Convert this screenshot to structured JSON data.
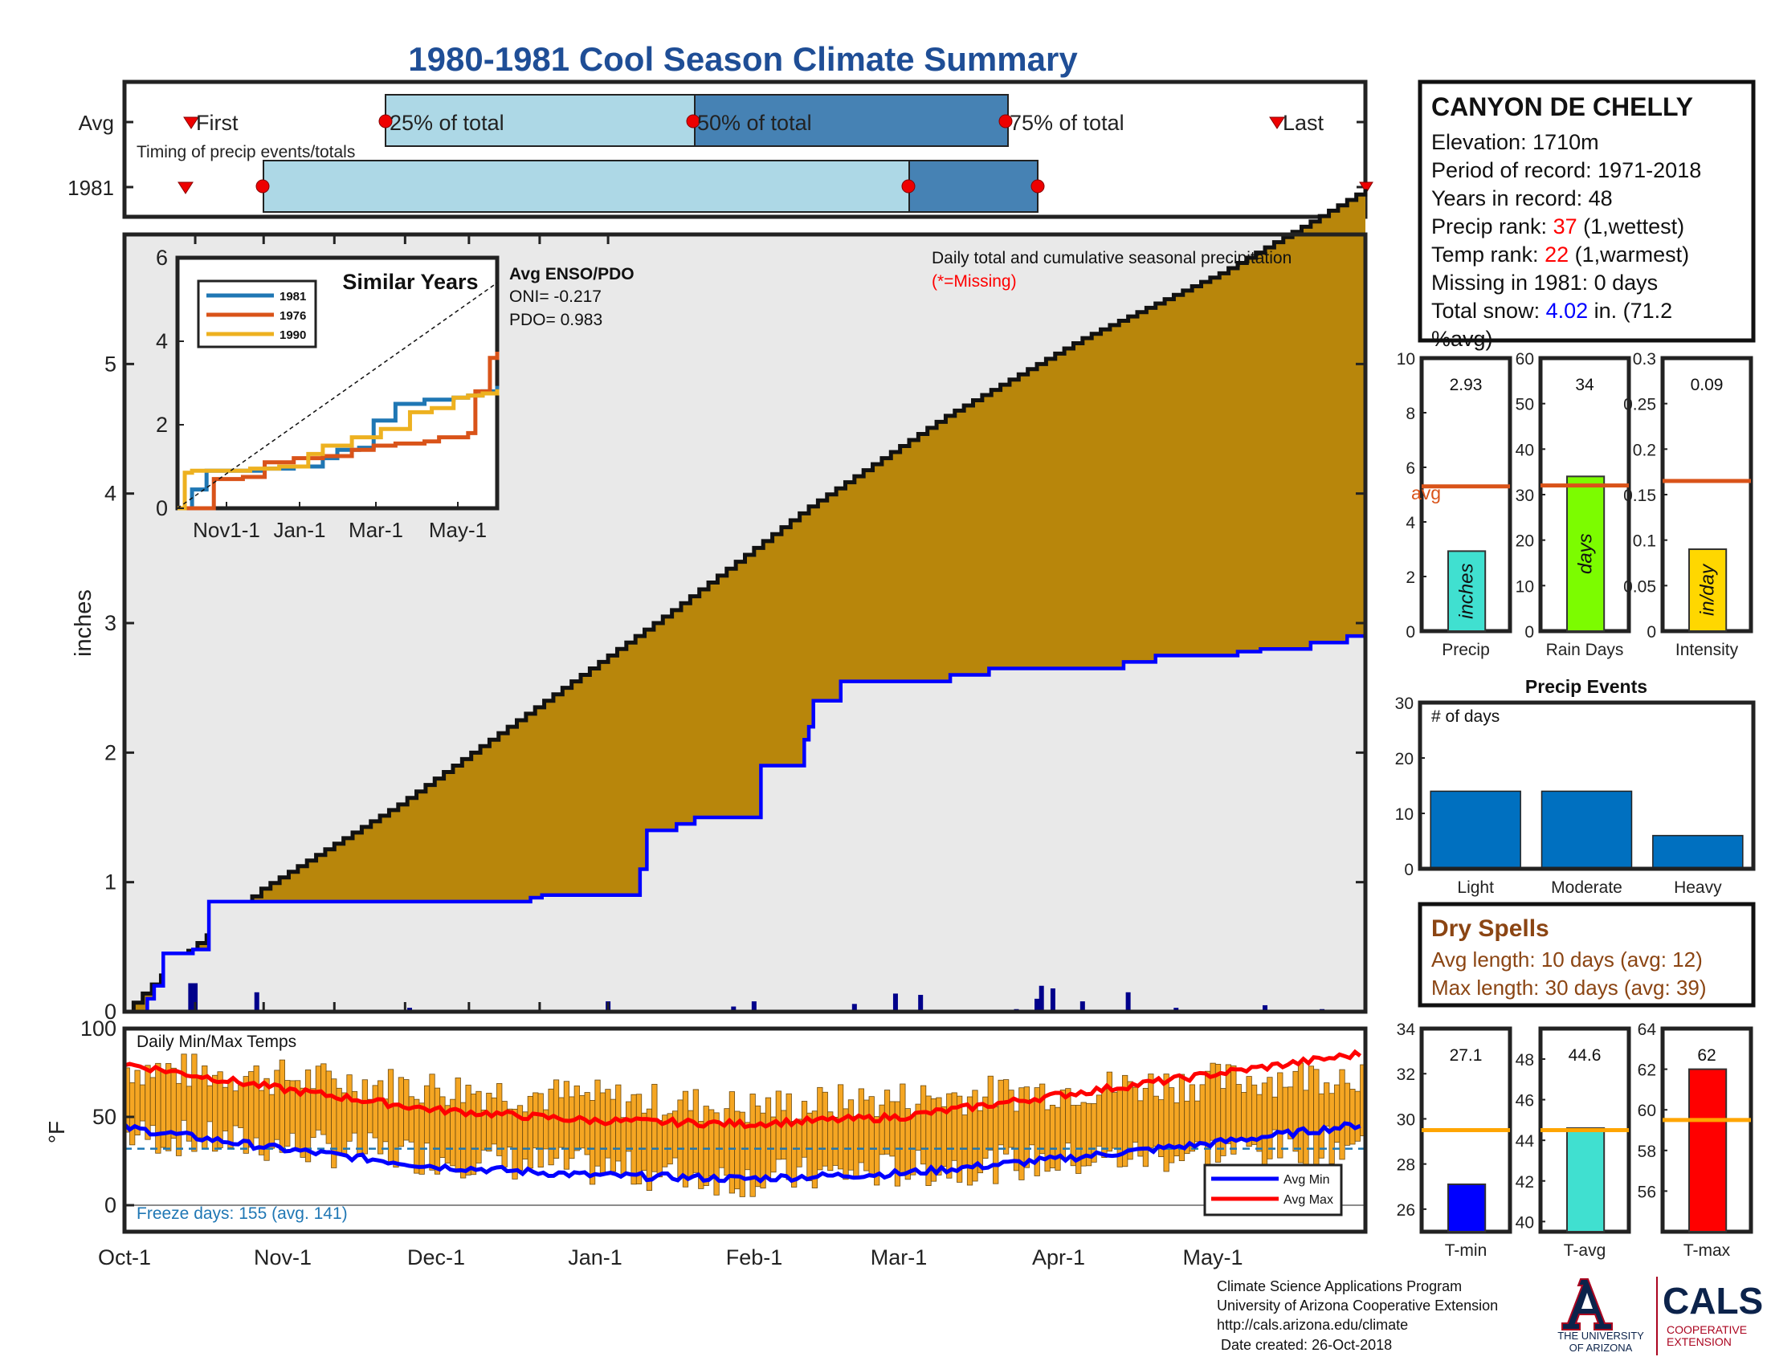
{
  "title": "1980-1981 Cool Season Climate Summary",
  "timing": {
    "rows": [
      "Avg",
      "1981"
    ],
    "caption": "Timing of precip events/totals",
    "labels": [
      "First",
      "25% of total",
      "50% of total",
      "75% of total",
      "Last"
    ]
  },
  "station": {
    "name": "CANYON DE CHELLY",
    "elevation_label": "Elevation: 1710m",
    "period_label": "Period of record: 1971-2018",
    "years_label": "Years in record: 48",
    "precip_rank_prefix": "Precip rank: ",
    "precip_rank_value": "37",
    "precip_rank_suffix": " (1,wettest)",
    "temp_rank_prefix": "Temp rank: ",
    "temp_rank_value": "22",
    "temp_rank_suffix": " (1,warmest)",
    "missing_label": "Missing in 1981: 0 days",
    "snow_prefix": "Total snow: ",
    "snow_value": "4.02",
    "snow_suffix": " in. (71.2",
    "snow_suffix2": "%avg)"
  },
  "main": {
    "ylabel": "inches",
    "note": "Daily total and cumulative seasonal precipitation",
    "missing_note": "(*=Missing)"
  },
  "inset": {
    "title": "Similar Years",
    "legend": [
      "1981",
      "1976",
      "1990"
    ],
    "enso_title": "Avg ENSO/PDO",
    "oni": "ONI= -0.217",
    "pdo": "PDO= 0.983"
  },
  "temps": {
    "title": "Daily Min/Max Temps",
    "ylabel": "°F",
    "freeze": "Freeze days: 155 (avg. 141)",
    "legend": [
      "Avg Min",
      "Avg Max"
    ]
  },
  "x_axis_labels": [
    "Oct-1",
    "Nov-1",
    "Dec-1",
    "Jan-1",
    "Feb-1",
    "Mar-1",
    "Apr-1",
    "May-1"
  ],
  "inset_x_labels": [
    "Nov1-1",
    "Jan-1",
    "Mar-1",
    "May-1"
  ],
  "dry_spells": {
    "title": "Dry Spells",
    "avg": "Avg length: 10 days (avg: 12)",
    "max": "Max length: 30 days (avg: 39)"
  },
  "footer": {
    "lines": [
      "Climate Science Applications Program",
      "University of Arizona Cooperative Extension",
      "http://cals.arizona.edu/climate",
      " Date created: 26-Oct-2018"
    ],
    "ua_text1": "THE UNIVERSITY",
    "ua_text2": "OF ARIZONA",
    "cals": "CALS",
    "coop1": "COOPERATIVE",
    "coop2": "EXTENSION"
  },
  "colors": {
    "title": "#1f4e96",
    "cumulative_avg": "#b8860b",
    "cumulative_obs": "#0000ff",
    "daily_bar": "#00008b",
    "temp_bar": "#f5a623",
    "avg_max": "#ff0000",
    "avg_min": "#0000ff",
    "rank_value": "#ff0000",
    "snow_value": "#0000ff",
    "dry_spells": "#8b4513"
  },
  "chart_data": [
    {
      "type": "line",
      "id": "cumulative_precip",
      "ylabel": "inches",
      "ylim": [
        0,
        6
      ],
      "yticks": [
        0,
        1,
        2,
        3,
        4,
        5
      ],
      "series": [
        {
          "name": "1981 cumulative",
          "x": [
            0,
            10,
            13,
            17,
            30,
            37,
            75,
            150,
            178,
            183,
            200,
            222,
            226,
            229,
            242,
            250,
            279,
            298,
            300,
            302,
            314,
            362,
            369,
            379,
            397,
            438,
            452,
            488,
            498,
            502,
            520,
            536,
            544
          ],
          "y": [
            0,
            0.1,
            0.2,
            0.45,
            0.48,
            0.85,
            0.85,
            0.85,
            0.88,
            0.9,
            0.9,
            0.9,
            1.1,
            1.4,
            1.45,
            1.5,
            1.9,
            2.1,
            2.2,
            2.4,
            2.55,
            2.6,
            2.6,
            2.65,
            2.65,
            2.7,
            2.75,
            2.78,
            2.8,
            2.8,
            2.85,
            2.9,
            2.93
          ]
        },
        {
          "name": "Avg cumulative",
          "x": [
            0,
            20,
            60,
            120,
            180,
            240,
            300,
            360,
            420,
            480,
            520,
            544
          ],
          "y": [
            0,
            0.35,
            0.95,
            1.6,
            2.35,
            3.1,
            3.9,
            4.6,
            5.2,
            5.7,
            6.1,
            6.35
          ]
        }
      ],
      "daily_events": [
        {
          "day": 29,
          "value": 0.22
        },
        {
          "day": 31,
          "value": 0.22
        },
        {
          "day": 58,
          "value": 0.15
        },
        {
          "day": 125,
          "value": 0.03
        },
        {
          "day": 212,
          "value": 0.08
        },
        {
          "day": 267,
          "value": 0.04
        },
        {
          "day": 276,
          "value": 0.08
        },
        {
          "day": 320,
          "value": 0.06
        },
        {
          "day": 338,
          "value": 0.14
        },
        {
          "day": 349,
          "value": 0.13
        },
        {
          "day": 391,
          "value": 0.02
        },
        {
          "day": 400,
          "value": 0.1
        },
        {
          "day": 402,
          "value": 0.2
        },
        {
          "day": 407,
          "value": 0.18
        },
        {
          "day": 420,
          "value": 0.08
        },
        {
          "day": 440,
          "value": 0.15
        },
        {
          "day": 461,
          "value": 0.03
        },
        {
          "day": 500,
          "value": 0.05
        },
        {
          "day": 525,
          "value": 0.02
        }
      ]
    },
    {
      "type": "line",
      "id": "similar_years",
      "title": "Similar Years",
      "ylim": [
        0,
        6
      ],
      "yticks": [
        0,
        2,
        4,
        6
      ],
      "series": [
        {
          "name": "1981",
          "x": [
            0,
            10,
            20,
            60,
            80,
            100,
            110,
            125,
            135,
            150,
            170,
            190,
            200,
            210,
            220
          ],
          "y": [
            0,
            0.45,
            0.9,
            0.95,
            1.0,
            1.2,
            1.4,
            1.45,
            2.1,
            2.5,
            2.6,
            2.65,
            2.7,
            2.8,
            2.93
          ]
        },
        {
          "name": "1976",
          "x": [
            0,
            20,
            25,
            45,
            60,
            80,
            100,
            120,
            135,
            150,
            170,
            180,
            190,
            200,
            205,
            215,
            220
          ],
          "y": [
            0,
            0,
            0.7,
            0.75,
            1.1,
            1.2,
            1.25,
            1.4,
            1.5,
            1.55,
            1.6,
            1.7,
            1.7,
            1.8,
            2.8,
            3.6,
            3.75
          ]
        },
        {
          "name": "1990",
          "x": [
            0,
            5,
            10,
            50,
            70,
            90,
            100,
            120,
            140,
            160,
            175,
            190,
            200,
            210,
            220
          ],
          "y": [
            0,
            0.85,
            0.9,
            0.95,
            1.0,
            1.3,
            1.5,
            1.7,
            1.9,
            2.3,
            2.4,
            2.65,
            2.7,
            2.75,
            2.85
          ]
        },
        {
          "name": "Avg",
          "x": [
            0,
            220
          ],
          "y": [
            0,
            5.4
          ]
        }
      ]
    },
    {
      "type": "bar",
      "id": "precip_total",
      "categories": [
        "Precip"
      ],
      "values": [
        2.93
      ],
      "value_label": "2.93",
      "bar_label": "inches",
      "avg_label": "avg",
      "avg": 5.3,
      "ylim": [
        0,
        10
      ],
      "yticks": [
        0,
        2,
        4,
        6,
        8,
        10
      ],
      "color": "#40e0d0"
    },
    {
      "type": "bar",
      "id": "rain_days",
      "categories": [
        "Rain Days"
      ],
      "values": [
        34
      ],
      "value_label": "34",
      "bar_label": "days",
      "avg": 32,
      "ylim": [
        0,
        60
      ],
      "yticks": [
        0,
        10,
        20,
        30,
        40,
        50,
        60
      ],
      "color": "#7cfc00"
    },
    {
      "type": "bar",
      "id": "intensity",
      "categories": [
        "Intensity"
      ],
      "values": [
        0.09
      ],
      "value_label": "0.09",
      "bar_label": "in/day",
      "avg": 0.165,
      "ylim": [
        0,
        0.3
      ],
      "yticks": [
        0,
        0.05,
        0.1,
        0.15,
        0.2,
        0.25,
        0.3
      ],
      "ytick_labels": [
        "0",
        "0.05",
        "0.1",
        "0.15",
        "0.2",
        "0.25",
        "0.3"
      ],
      "color": "#ffd700"
    },
    {
      "type": "bar",
      "id": "precip_events",
      "title": "Precip Events",
      "ylabel": "# of days",
      "categories": [
        "Light",
        "Moderate",
        "Heavy"
      ],
      "values": [
        14,
        14,
        6
      ],
      "ylim": [
        0,
        30
      ],
      "yticks": [
        0,
        10,
        20,
        30
      ],
      "color": "#0070c0"
    },
    {
      "type": "bar",
      "id": "daily_temps",
      "title": "Daily Min/Max Temps",
      "ylabel": "°F",
      "ylim": [
        -15,
        100
      ],
      "yticks": [
        0,
        50,
        100
      ],
      "freeze_line": 32,
      "days": 240,
      "tmax_start": 78,
      "tmax_mid": 55,
      "tmax_end": 75,
      "tmin_start": 40,
      "tmin_mid": 15,
      "tmin_end": 35,
      "series": [
        {
          "name": "Avg Min",
          "x": [
            0,
            30,
            60,
            90,
            120,
            150,
            180,
            210,
            240
          ],
          "y": [
            44,
            32,
            22,
            17,
            15,
            18,
            26,
            35,
            46
          ]
        },
        {
          "name": "Avg Max",
          "x": [
            0,
            30,
            60,
            90,
            120,
            150,
            180,
            210,
            240
          ],
          "y": [
            80,
            66,
            54,
            48,
            46,
            50,
            62,
            74,
            86
          ]
        }
      ]
    },
    {
      "type": "bar",
      "id": "tmin",
      "categories": [
        "T-min"
      ],
      "values": [
        27.1
      ],
      "value_label": "27.1",
      "avg": 29.5,
      "ylim": [
        25,
        34
      ],
      "yticks": [
        26,
        28,
        30,
        32,
        34
      ],
      "color": "#0000ff"
    },
    {
      "type": "bar",
      "id": "tavg",
      "categories": [
        "T-avg"
      ],
      "values": [
        44.6
      ],
      "value_label": "44.6",
      "avg": 44.5,
      "ylim": [
        39.5,
        49.5
      ],
      "yticks": [
        40,
        42,
        44,
        46,
        48
      ],
      "color": "#40e0d0"
    },
    {
      "type": "bar",
      "id": "tmax",
      "categories": [
        "T-max"
      ],
      "values": [
        62
      ],
      "value_label": "62",
      "avg": 59.5,
      "ylim": [
        54,
        64
      ],
      "yticks": [
        56,
        58,
        60,
        62,
        64
      ],
      "color": "#ff0000"
    }
  ]
}
